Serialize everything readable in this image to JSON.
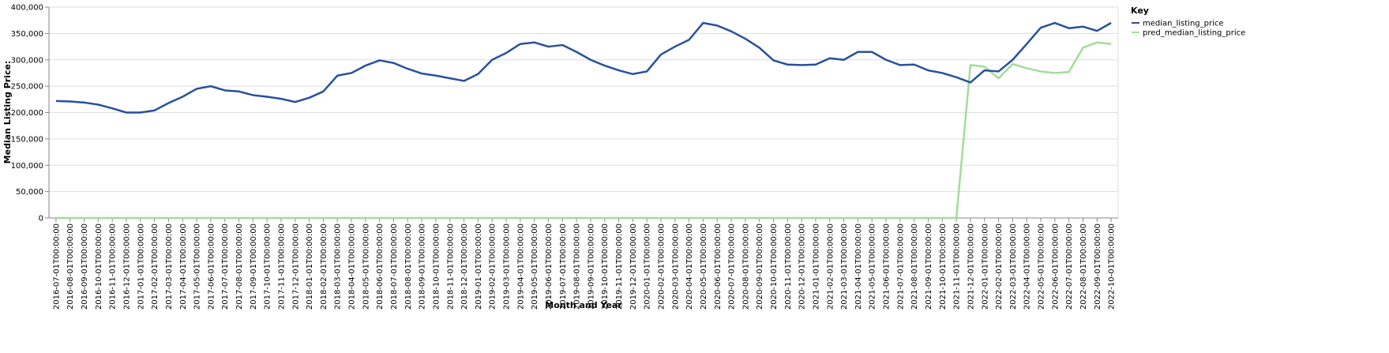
{
  "chart_data": {
    "type": "line",
    "xlabel": "Month and Year",
    "ylabel": "Median Listing Price:",
    "legend_title": "Key",
    "legend_position": "right",
    "grid": true,
    "categories": [
      "2016-07-01T00:00:00",
      "2016-08-01T00:00:00",
      "2016-09-01T00:00:00",
      "2016-10-01T00:00:00",
      "2016-11-01T00:00:00",
      "2016-12-01T00:00:00",
      "2017-01-01T00:00:00",
      "2017-02-01T00:00:00",
      "2017-03-01T00:00:00",
      "2017-04-01T00:00:00",
      "2017-05-01T00:00:00",
      "2017-06-01T00:00:00",
      "2017-07-01T00:00:00",
      "2017-08-01T00:00:00",
      "2017-09-01T00:00:00",
      "2017-10-01T00:00:00",
      "2017-11-01T00:00:00",
      "2017-12-01T00:00:00",
      "2018-01-01T00:00:00",
      "2018-02-01T00:00:00",
      "2018-03-01T00:00:00",
      "2018-04-01T00:00:00",
      "2018-05-01T00:00:00",
      "2018-06-01T00:00:00",
      "2018-07-01T00:00:00",
      "2018-08-01T00:00:00",
      "2018-09-01T00:00:00",
      "2018-10-01T00:00:00",
      "2018-11-01T00:00:00",
      "2018-12-01T00:00:00",
      "2019-01-01T00:00:00",
      "2019-02-01T00:00:00",
      "2019-03-01T00:00:00",
      "2019-04-01T00:00:00",
      "2019-05-01T00:00:00",
      "2019-06-01T00:00:00",
      "2019-07-01T00:00:00",
      "2019-08-01T00:00:00",
      "2019-09-01T00:00:00",
      "2019-10-01T00:00:00",
      "2019-11-01T00:00:00",
      "2019-12-01T00:00:00",
      "2020-01-01T00:00:00",
      "2020-02-01T00:00:00",
      "2020-03-01T00:00:00",
      "2020-04-01T00:00:00",
      "2020-05-01T00:00:00",
      "2020-06-01T00:00:00",
      "2020-07-01T00:00:00",
      "2020-08-01T00:00:00",
      "2020-09-01T00:00:00",
      "2020-10-01T00:00:00",
      "2020-11-01T00:00:00",
      "2020-12-01T00:00:00",
      "2021-01-01T00:00:00",
      "2021-02-01T00:00:00",
      "2021-03-01T00:00:00",
      "2021-04-01T00:00:00",
      "2021-05-01T00:00:00",
      "2021-06-01T00:00:00",
      "2021-07-01T00:00:00",
      "2021-08-01T00:00:00",
      "2021-09-01T00:00:00",
      "2021-10-01T00:00:00",
      "2021-11-01T00:00:00",
      "2021-12-01T00:00:00",
      "2022-01-01T00:00:00",
      "2022-02-01T00:00:00",
      "2022-03-01T00:00:00",
      "2022-04-01T00:00:00",
      "2022-05-01T00:00:00",
      "2022-06-01T00:00:00",
      "2022-07-01T00:00:00",
      "2022-08-01T00:00:00",
      "2022-09-01T00:00:00",
      "2022-10-01T00:00:00"
    ],
    "series": [
      {
        "name": "median_listing_price",
        "color": "#28519c",
        "values": [
          222000,
          221000,
          219000,
          215000,
          208000,
          200000,
          200000,
          204000,
          218000,
          230000,
          245000,
          250000,
          242000,
          240000,
          233000,
          230000,
          226000,
          220000,
          228000,
          240000,
          270000,
          275000,
          289000,
          299000,
          294000,
          283000,
          274000,
          270000,
          265000,
          260000,
          273000,
          300000,
          313000,
          330000,
          333000,
          325000,
          328000,
          315000,
          300000,
          289000,
          280000,
          273000,
          278000,
          310000,
          325000,
          338000,
          370000,
          365000,
          354000,
          340000,
          323000,
          299000,
          291000,
          290000,
          291000,
          303000,
          300000,
          315000,
          315000,
          300000,
          290000,
          291000,
          280000,
          275000,
          267000,
          257000,
          280000,
          278000,
          300000,
          330000,
          361000,
          370000,
          360000,
          363000,
          355000,
          370000
        ]
      },
      {
        "name": "pred_median_listing_price",
        "color": "#a3dc99",
        "values": [
          0,
          0,
          0,
          0,
          0,
          0,
          0,
          0,
          0,
          0,
          0,
          0,
          0,
          0,
          0,
          0,
          0,
          0,
          0,
          0,
          0,
          0,
          0,
          0,
          0,
          0,
          0,
          0,
          0,
          0,
          0,
          0,
          0,
          0,
          0,
          0,
          0,
          0,
          0,
          0,
          0,
          0,
          0,
          0,
          0,
          0,
          0,
          0,
          0,
          0,
          0,
          0,
          0,
          0,
          0,
          0,
          0,
          0,
          0,
          0,
          0,
          0,
          0,
          0,
          0,
          290000,
          287000,
          265000,
          292000,
          284000,
          278000,
          275000,
          277000,
          323000,
          333000,
          330000
        ]
      }
    ],
    "ylim": [
      0,
      400000
    ],
    "yticks": [
      0,
      {
        "value": 50000,
        "label": "50,000"
      },
      {
        "value": 100000,
        "label": "100,000"
      },
      {
        "value": 150000,
        "label": "150,000"
      },
      {
        "value": 200000,
        "label": "200,000"
      },
      {
        "value": 250000,
        "label": "250,000"
      },
      {
        "value": 300000,
        "label": "300,000"
      },
      {
        "value": 350000,
        "label": "350,000"
      },
      {
        "value": 400000,
        "label": "400,000"
      }
    ]
  }
}
